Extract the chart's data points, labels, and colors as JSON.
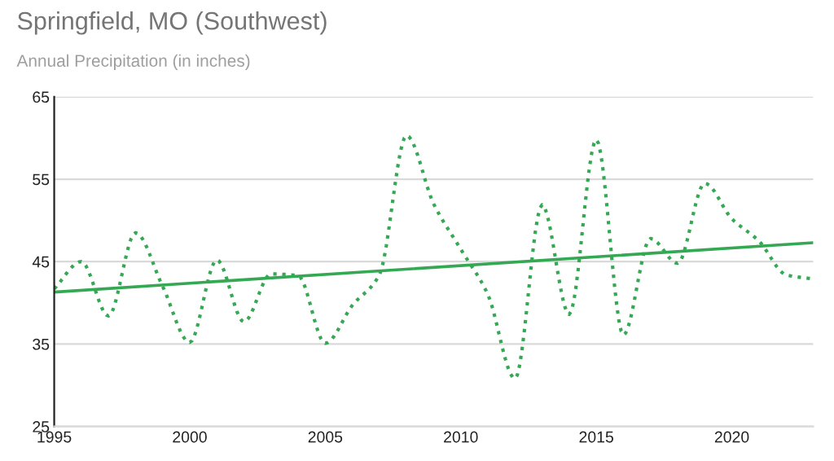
{
  "chart_data": {
    "type": "line",
    "title": "Springfield, MO (Southwest)",
    "subtitle": "Annual Precipitation (in inches)",
    "x": [
      1995,
      1996,
      1997,
      1998,
      1999,
      2000,
      2001,
      2002,
      2003,
      2004,
      2005,
      2006,
      2007,
      2008,
      2009,
      2010,
      2011,
      2012,
      2013,
      2014,
      2015,
      2016,
      2017,
      2018,
      2019,
      2020,
      2021,
      2022,
      2023
    ],
    "series": [
      {
        "color": "#34a853",
        "line_style": "dotted",
        "values": [
          41.7,
          45,
          38.4,
          48.5,
          42,
          35.2,
          45.2,
          37.7,
          43.5,
          43.3,
          35.1,
          39.7,
          43.4,
          60.3,
          52,
          46.5,
          41,
          30.8,
          51.9,
          38.6,
          59.8,
          36.1,
          47.8,
          44.8,
          54.5,
          50.2,
          47.5,
          43.4,
          42.9
        ]
      },
      {
        "color": "#34a853",
        "line_style": "solid",
        "x": [
          1995,
          2023
        ],
        "values": [
          41.3,
          47.3
        ]
      }
    ],
    "xlim": [
      1995,
      2023
    ],
    "xticks": [
      1995,
      2000,
      2005,
      2010,
      2015,
      2020
    ],
    "ylim": [
      25,
      65
    ],
    "yticks": [
      25,
      35,
      45,
      55,
      65
    ],
    "grid": "y",
    "marker": "none",
    "legend": false
  }
}
